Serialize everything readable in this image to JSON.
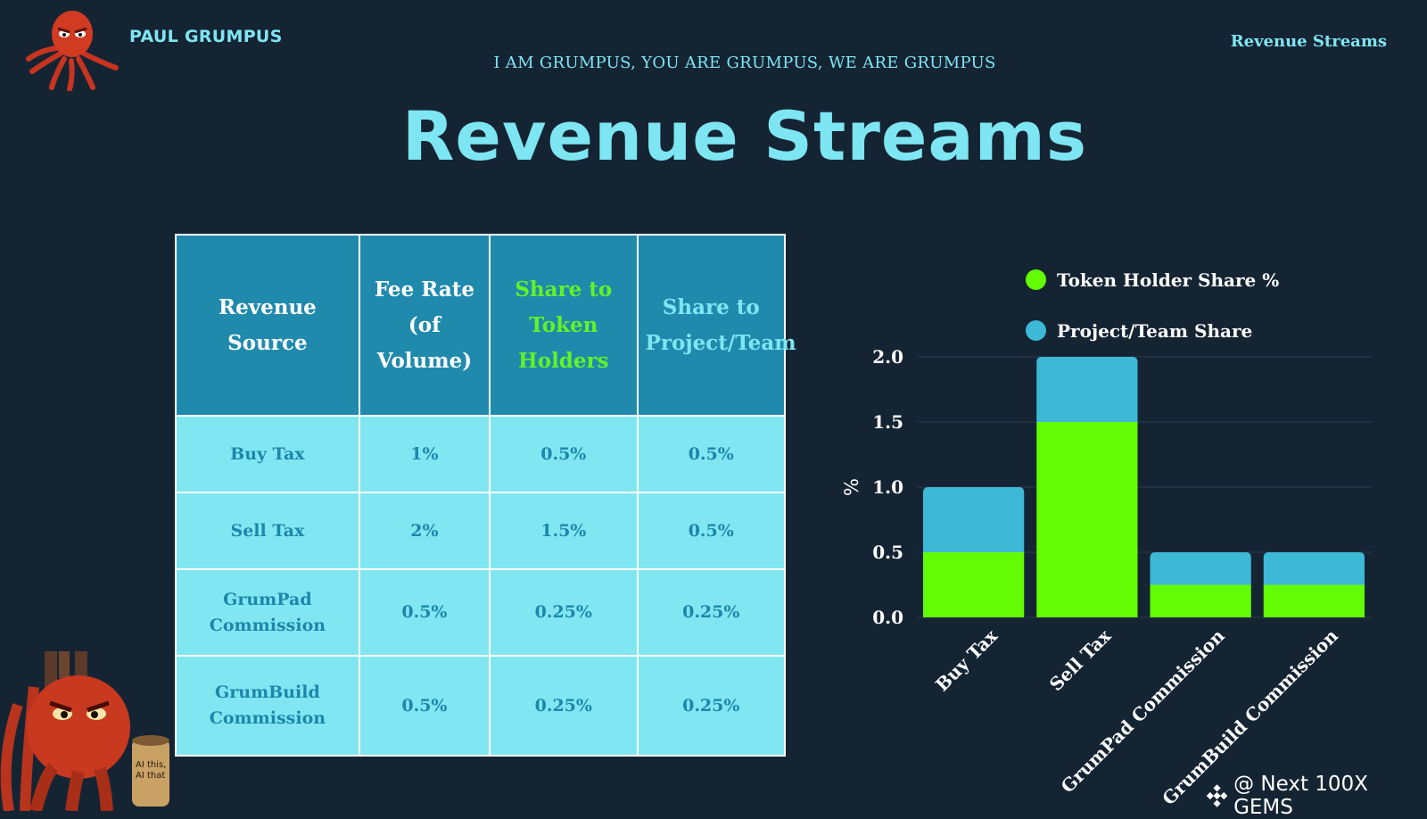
{
  "header": {
    "brand": "PAUL GRUMPUS",
    "tagline": "I AM GRUMPUS, YOU ARE GRUMPUS, WE ARE GRUMPUS",
    "title": "Revenue Streams",
    "corner_title": "Revenue Streams"
  },
  "table": {
    "headers": [
      "Revenue Source",
      "Fee Rate (of Volume)",
      "Share to Token Holders",
      "Share to Project/Team"
    ],
    "rows": [
      [
        "Buy Tax",
        "1%",
        "0.5%",
        "0.5%"
      ],
      [
        "Sell Tax",
        "2%",
        "1.5%",
        "0.5%"
      ],
      [
        "GrumPad Commission",
        "0.5%",
        "0.25%",
        "0.25%"
      ],
      [
        "GrumBuild Commission",
        "0.5%",
        "0.25%",
        "0.25%"
      ]
    ]
  },
  "chart_data": {
    "type": "bar",
    "stacked": true,
    "categories": [
      "Buy Tax",
      "Sell Tax",
      "GrumPad Commission",
      "GrumBuild Commission"
    ],
    "series": [
      {
        "name": "Token Holder Share %",
        "values": [
          0.5,
          1.5,
          0.25,
          0.25
        ],
        "color": "#63fc05"
      },
      {
        "name": "Project/Team Share",
        "values": [
          0.5,
          0.5,
          0.25,
          0.25
        ],
        "color": "#3db8d6"
      }
    ],
    "ylabel": "%",
    "ylim": [
      0,
      2.0
    ],
    "yticks": [
      "0.0",
      "0.5",
      "1.0",
      "1.5",
      "2.0"
    ],
    "grid": true,
    "legend": "top"
  },
  "mascot_sign": "AI this, AI that",
  "watermark": "@ Next 100X GEMS",
  "colors": {
    "background": "#152433",
    "accent": "#7ee6f2",
    "header_cell": "#208aad",
    "body_cell": "#80e6f1",
    "green": "#63fc05",
    "blue": "#3db8d6"
  }
}
